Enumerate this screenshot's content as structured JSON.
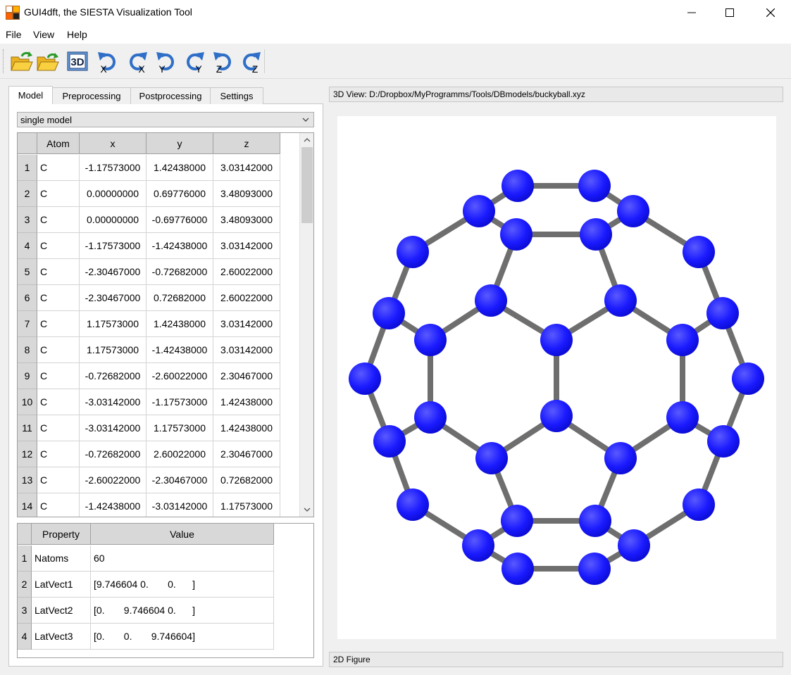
{
  "window": {
    "title": "GUI4dft, the SIESTA Visualization Tool",
    "icon": "app-logo-icon",
    "controls": [
      "minimize-icon",
      "maximize-icon",
      "close-icon"
    ]
  },
  "menu": [
    "File",
    "View",
    "Help"
  ],
  "toolbar": [
    {
      "name": "open-file-icon"
    },
    {
      "name": "open-folder-icon"
    },
    {
      "name": "3d-view-icon",
      "label": "3D"
    },
    {
      "name": "rotate-x-ccw-icon",
      "axis": "X"
    },
    {
      "name": "rotate-x-cw-icon",
      "axis": "X"
    },
    {
      "name": "rotate-y-ccw-icon",
      "axis": "Y"
    },
    {
      "name": "rotate-y-cw-icon",
      "axis": "Y"
    },
    {
      "name": "rotate-z-ccw-icon",
      "axis": "Z"
    },
    {
      "name": "rotate-z-cw-icon",
      "axis": "Z"
    }
  ],
  "tabs": [
    "Model",
    "Preprocessing",
    "Postprocessing",
    "Settings"
  ],
  "active_tab": "Model",
  "model_select": {
    "value": "single model"
  },
  "atom_table": {
    "columns": [
      "Atom",
      "x",
      "y",
      "z"
    ],
    "rows": [
      [
        "1",
        "C",
        "-1.17573000",
        "1.42438000",
        "3.03142000"
      ],
      [
        "2",
        "C",
        "0.00000000",
        "0.69776000",
        "3.48093000"
      ],
      [
        "3",
        "C",
        "0.00000000",
        "-0.69776000",
        "3.48093000"
      ],
      [
        "4",
        "C",
        "-1.17573000",
        "-1.42438000",
        "3.03142000"
      ],
      [
        "5",
        "C",
        "-2.30467000",
        "-0.72682000",
        "2.60022000"
      ],
      [
        "6",
        "C",
        "-2.30467000",
        "0.72682000",
        "2.60022000"
      ],
      [
        "7",
        "C",
        "1.17573000",
        "1.42438000",
        "3.03142000"
      ],
      [
        "8",
        "C",
        "1.17573000",
        "-1.42438000",
        "3.03142000"
      ],
      [
        "9",
        "C",
        "-0.72682000",
        "-2.60022000",
        "2.30467000"
      ],
      [
        "10",
        "C",
        "-3.03142000",
        "-1.17573000",
        "1.42438000"
      ],
      [
        "11",
        "C",
        "-3.03142000",
        "1.17573000",
        "1.42438000"
      ],
      [
        "12",
        "C",
        "-0.72682000",
        "2.60022000",
        "2.30467000"
      ],
      [
        "13",
        "C",
        "-2.60022000",
        "-2.30467000",
        "0.72682000"
      ],
      [
        "14",
        "C",
        "-1.42438000",
        "-3.03142000",
        "1.17573000"
      ]
    ]
  },
  "property_table": {
    "columns": [
      "Property",
      "Value"
    ],
    "rows": [
      [
        "1",
        "Natoms",
        "60"
      ],
      [
        "2",
        "LatVect1",
        "[9.746604 0.       0.      ]"
      ],
      [
        "3",
        "LatVect2",
        "[0.       9.746604 0.      ]"
      ],
      [
        "4",
        "LatVect3",
        "[0.       0.       9.746604]"
      ]
    ]
  },
  "view3d_title": "3D View: D:/Dropbox/MyProgramms/Tools/DBmodels/buckyball.xyz",
  "figure2d_title": "2D Figure",
  "colors": {
    "atom": "#1a1aff",
    "bond": "#6e6e6e"
  }
}
